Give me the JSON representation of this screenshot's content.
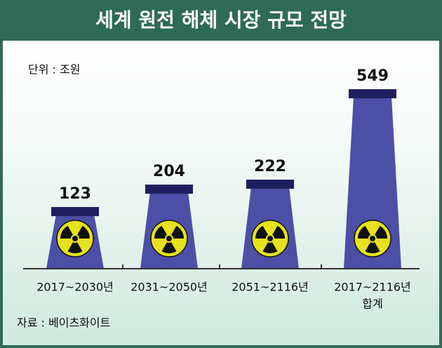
{
  "chart_data": {
    "type": "tower",
    "title": "세계 원전 해체 시장 규모 전망",
    "unit": "단위 : 조원",
    "categories": [
      "2017~2030년",
      "2031~2050년",
      "2051~2116년",
      "2017~2116년"
    ],
    "total_label": "합계",
    "values": [
      123,
      204,
      222,
      549
    ],
    "color": "#4b50a6",
    "cap_color": "#1d205e",
    "ylim": [
      -100,
      600
    ],
    "source": "자료 : 베이츠화이트"
  }
}
